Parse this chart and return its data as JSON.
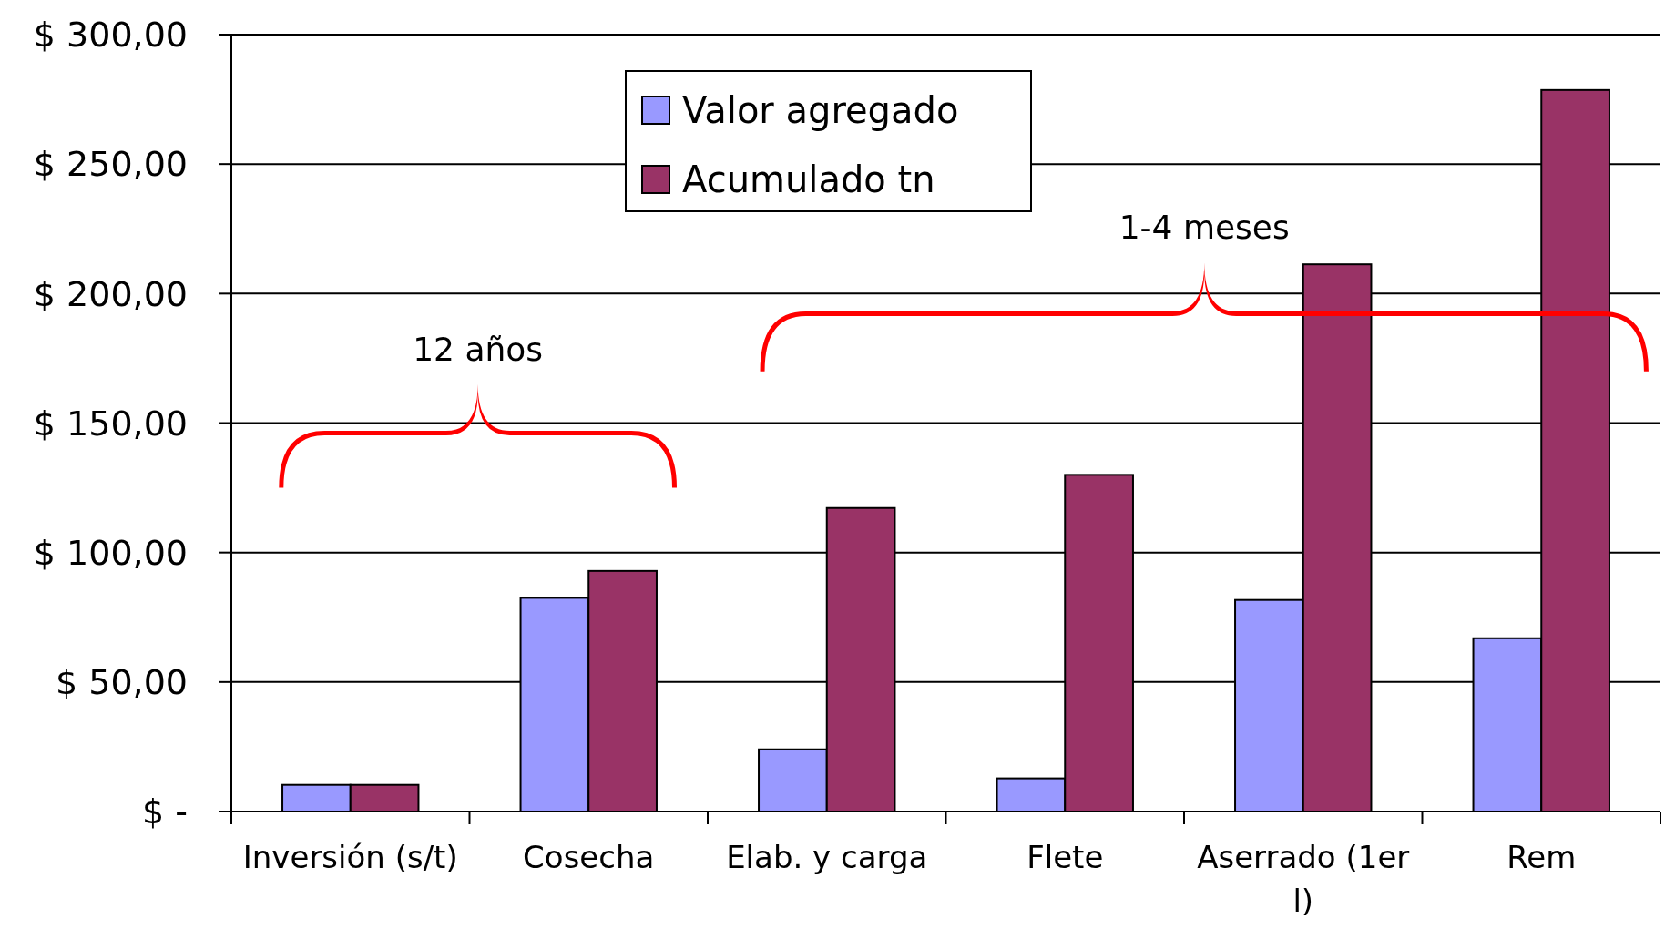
{
  "chart_data": {
    "type": "bar",
    "categories": [
      "Inversión (s/t)",
      "Cosecha",
      "Elab. y carga",
      "Flete",
      "Aserrado (1er l)",
      "Rem"
    ],
    "series": [
      {
        "name": "Valor agregado",
        "color": "#9999ff",
        "values": [
          10.3,
          82.5,
          24,
          12.8,
          81.7,
          66.9
        ]
      },
      {
        "name": "Acumulado tn",
        "color": "#993366",
        "values": [
          10.3,
          92.9,
          117.2,
          130,
          211.3,
          278.6
        ]
      }
    ],
    "ylim": [
      0,
      300
    ],
    "yticks": [
      {
        "value": 0,
        "label": "$ -"
      },
      {
        "value": 50,
        "label": "$ 50,00"
      },
      {
        "value": 100,
        "label": "$ 100,00"
      },
      {
        "value": 150,
        "label": "$ 150,00"
      },
      {
        "value": 200,
        "label": "$ 200,00"
      },
      {
        "value": 250,
        "label": "$ 250,00"
      },
      {
        "value": 300,
        "label": "$ 300,00"
      }
    ],
    "grid": "y",
    "legend": "top",
    "annotations": [
      "12 años",
      "1-4 meses"
    ]
  }
}
